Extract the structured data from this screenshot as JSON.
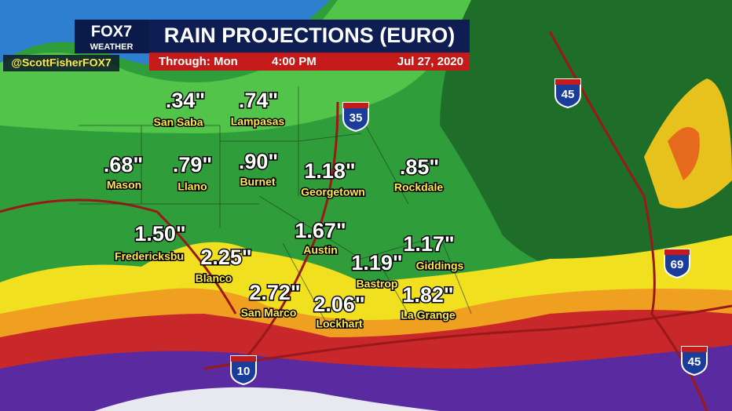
{
  "header": {
    "logo": "FOX7",
    "logo_sub": "WEATHER",
    "title": "RAIN PROJECTIONS (EURO)",
    "through": "Through: Mon",
    "time": "4:00 PM",
    "date": "Jul 27, 2020"
  },
  "handle": "@ScottFisherFOX7",
  "cities": [
    {
      "amount": ".34\"",
      "name": "San Saba"
    },
    {
      "amount": ".74\"",
      "name": "Lampasas"
    },
    {
      "amount": ".68\"",
      "name": "Mason"
    },
    {
      "amount": ".79\"",
      "name": "Llano"
    },
    {
      "amount": ".90\"",
      "name": "Burnet"
    },
    {
      "amount": "1.18\"",
      "name": "Georgetown"
    },
    {
      "amount": ".85\"",
      "name": "Rockdale"
    },
    {
      "amount": "1.50\"",
      "name": "Fredericksbu"
    },
    {
      "amount": "1.67\"",
      "name": "Austin"
    },
    {
      "amount": "2.25\"",
      "name": "Blanco"
    },
    {
      "amount": "1.19\"",
      "name": "Bastrop"
    },
    {
      "amount": "1.17\"",
      "name": "Giddings"
    },
    {
      "amount": "2.72\"",
      "name": "San Marco"
    },
    {
      "amount": "2.06\"",
      "name": "Lockhart"
    },
    {
      "amount": "1.82\"",
      "name": "La Grange"
    }
  ],
  "shields": [
    {
      "number": "35"
    },
    {
      "number": "45"
    },
    {
      "number": "69"
    },
    {
      "number": "10"
    },
    {
      "number": "45"
    }
  ]
}
